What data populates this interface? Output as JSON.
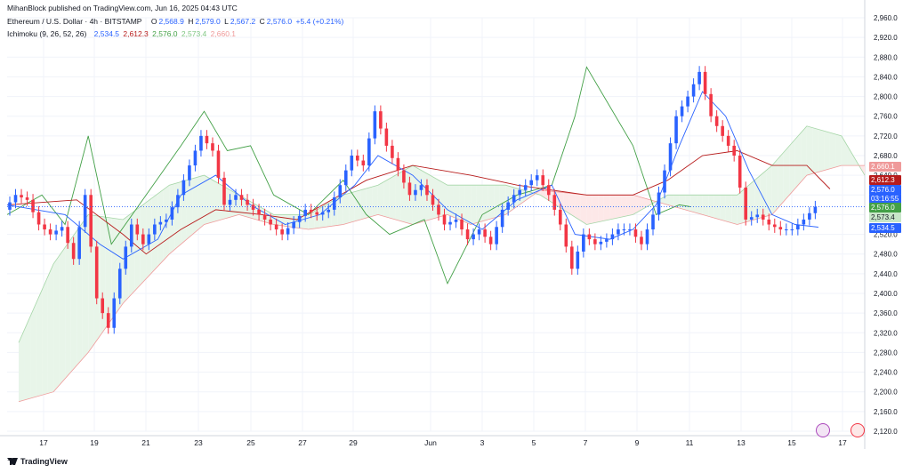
{
  "header": {
    "published": "MihanBlock published on TradingView.com, Jun 16, 2025 04:43 UTC",
    "symbol": "Ethereum / U.S. Dollar · 4h · BITSTAMP",
    "o_label": "O",
    "o_val": "2,568.9",
    "h_label": "H",
    "h_val": "2,579.0",
    "l_label": "L",
    "l_val": "2,567.2",
    "c_label": "C",
    "c_val": "2,576.0",
    "change": "+5.4 (+0.21%)",
    "ichimoku_label": "Ichimoku (9, 26, 52, 26)",
    "ichi_conv": "2,534.5",
    "ichi_base": "2,612.3",
    "ichi_lag": "2,576.0",
    "ichi_spanA": "2,573.4",
    "ichi_spanB": "2,660.1"
  },
  "price_tags": {
    "span_b": "2,660.1",
    "base": "2,612.3",
    "last": "2,576.0",
    "countdown": "03:16:55",
    "lag": "2,576.0",
    "span_a": "2,573.4",
    "conv": "2,534.5"
  },
  "colors": {
    "up": "#2962ff",
    "down": "#f23645",
    "conversion": "#2962ff",
    "base": "#b71c1c",
    "lagging": "#43a047",
    "cloud_bull": "#e8f5e9",
    "cloud_bear": "#fde8e8"
  },
  "footer": {
    "brand": "TradingView"
  },
  "chart_data": {
    "type": "candlestick",
    "ylim": [
      2120,
      2960
    ],
    "y_ticks": [
      "2,960.0",
      "2,920.0",
      "2,880.0",
      "2,840.0",
      "2,800.0",
      "2,760.0",
      "2,720.0",
      "2,680.0",
      "2,640.0",
      "2,600.0",
      "2,560.0",
      "2,520.0",
      "2,480.0",
      "2,440.0",
      "2,400.0",
      "2,360.0",
      "2,320.0",
      "2,280.0",
      "2,240.0",
      "2,200.0",
      "2,160.0",
      "2,120.0"
    ],
    "x_ticks": [
      "17",
      "19",
      "21",
      "23",
      "25",
      "27",
      "29",
      "Jun",
      "3",
      "5",
      "7",
      "9",
      "11",
      "13",
      "15",
      "17"
    ],
    "price_path": [
      [
        0,
        2570
      ],
      [
        2,
        2600
      ],
      [
        4,
        2590
      ],
      [
        6,
        2540
      ],
      [
        8,
        2520
      ],
      [
        10,
        2535
      ],
      [
        12,
        2470
      ],
      [
        14,
        2600
      ],
      [
        16,
        2390
      ],
      [
        18,
        2330
      ],
      [
        20,
        2450
      ],
      [
        22,
        2540
      ],
      [
        24,
        2500
      ],
      [
        26,
        2540
      ],
      [
        28,
        2550
      ],
      [
        30,
        2600
      ],
      [
        32,
        2660
      ],
      [
        34,
        2720
      ],
      [
        36,
        2690
      ],
      [
        38,
        2580
      ],
      [
        40,
        2600
      ],
      [
        42,
        2580
      ],
      [
        44,
        2560
      ],
      [
        46,
        2540
      ],
      [
        48,
        2520
      ],
      [
        50,
        2545
      ],
      [
        52,
        2570
      ],
      [
        54,
        2560
      ],
      [
        56,
        2570
      ],
      [
        58,
        2620
      ],
      [
        60,
        2680
      ],
      [
        62,
        2660
      ],
      [
        64,
        2770
      ],
      [
        66,
        2700
      ],
      [
        68,
        2650
      ],
      [
        70,
        2600
      ],
      [
        72,
        2620
      ],
      [
        74,
        2580
      ],
      [
        76,
        2540
      ],
      [
        78,
        2550
      ],
      [
        80,
        2510
      ],
      [
        82,
        2530
      ],
      [
        84,
        2500
      ],
      [
        86,
        2570
      ],
      [
        88,
        2600
      ],
      [
        90,
        2620
      ],
      [
        92,
        2640
      ],
      [
        94,
        2600
      ],
      [
        96,
        2540
      ],
      [
        98,
        2450
      ],
      [
        100,
        2520
      ],
      [
        102,
        2500
      ],
      [
        104,
        2510
      ],
      [
        106,
        2530
      ],
      [
        108,
        2530
      ],
      [
        110,
        2500
      ],
      [
        112,
        2560
      ],
      [
        114,
        2650
      ],
      [
        116,
        2760
      ],
      [
        118,
        2800
      ],
      [
        120,
        2850
      ],
      [
        122,
        2760
      ],
      [
        124,
        2720
      ],
      [
        126,
        2680
      ],
      [
        128,
        2550
      ],
      [
        130,
        2560
      ],
      [
        132,
        2540
      ],
      [
        134,
        2530
      ],
      [
        136,
        2530
      ],
      [
        138,
        2550
      ],
      [
        140,
        2576
      ]
    ],
    "conversion_line": [
      [
        0,
        2580
      ],
      [
        10,
        2560
      ],
      [
        16,
        2500
      ],
      [
        20,
        2470
      ],
      [
        26,
        2510
      ],
      [
        30,
        2600
      ],
      [
        36,
        2640
      ],
      [
        42,
        2580
      ],
      [
        48,
        2540
      ],
      [
        54,
        2560
      ],
      [
        60,
        2620
      ],
      [
        64,
        2680
      ],
      [
        70,
        2640
      ],
      [
        76,
        2570
      ],
      [
        82,
        2530
      ],
      [
        88,
        2590
      ],
      [
        94,
        2620
      ],
      [
        98,
        2520
      ],
      [
        104,
        2510
      ],
      [
        108,
        2530
      ],
      [
        112,
        2580
      ],
      [
        116,
        2700
      ],
      [
        120,
        2810
      ],
      [
        124,
        2760
      ],
      [
        128,
        2650
      ],
      [
        132,
        2560
      ],
      [
        136,
        2540
      ],
      [
        140,
        2534.5
      ]
    ],
    "base_line": [
      [
        0,
        2580
      ],
      [
        12,
        2590
      ],
      [
        20,
        2520
      ],
      [
        24,
        2480
      ],
      [
        30,
        2530
      ],
      [
        36,
        2570
      ],
      [
        44,
        2560
      ],
      [
        50,
        2550
      ],
      [
        56,
        2590
      ],
      [
        62,
        2630
      ],
      [
        70,
        2660
      ],
      [
        80,
        2640
      ],
      [
        88,
        2620
      ],
      [
        94,
        2610
      ],
      [
        100,
        2600
      ],
      [
        108,
        2600
      ],
      [
        114,
        2630
      ],
      [
        120,
        2680
      ],
      [
        126,
        2690
      ],
      [
        132,
        2660
      ],
      [
        138,
        2660
      ],
      [
        142,
        2612.3
      ]
    ],
    "lagging_line": [
      [
        0,
        2560
      ],
      [
        6,
        2600
      ],
      [
        10,
        2540
      ],
      [
        14,
        2720
      ],
      [
        18,
        2500
      ],
      [
        24,
        2600
      ],
      [
        30,
        2700
      ],
      [
        34,
        2770
      ],
      [
        38,
        2690
      ],
      [
        42,
        2700
      ],
      [
        46,
        2600
      ],
      [
        52,
        2560
      ],
      [
        58,
        2630
      ],
      [
        62,
        2560
      ],
      [
        66,
        2520
      ],
      [
        72,
        2550
      ],
      [
        76,
        2420
      ],
      [
        82,
        2560
      ],
      [
        88,
        2600
      ],
      [
        94,
        2620
      ],
      [
        98,
        2760
      ],
      [
        100,
        2860
      ],
      [
        104,
        2780
      ],
      [
        108,
        2700
      ],
      [
        112,
        2560
      ],
      [
        116,
        2580
      ],
      [
        118,
        2576
      ]
    ],
    "span_a": [
      [
        2,
        2300
      ],
      [
        8,
        2460
      ],
      [
        14,
        2560
      ],
      [
        20,
        2550
      ],
      [
        28,
        2620
      ],
      [
        34,
        2640
      ],
      [
        40,
        2600
      ],
      [
        46,
        2560
      ],
      [
        52,
        2560
      ],
      [
        58,
        2600
      ],
      [
        64,
        2620
      ],
      [
        70,
        2660
      ],
      [
        76,
        2620
      ],
      [
        80,
        2620
      ],
      [
        86,
        2620
      ],
      [
        92,
        2600
      ],
      [
        100,
        2540
      ],
      [
        108,
        2560
      ],
      [
        114,
        2600
      ],
      [
        120,
        2600
      ],
      [
        126,
        2600
      ],
      [
        132,
        2660
      ],
      [
        138,
        2740
      ],
      [
        144,
        2720
      ],
      [
        148,
        2640
      ]
    ],
    "span_b": [
      [
        2,
        2180
      ],
      [
        8,
        2200
      ],
      [
        14,
        2280
      ],
      [
        20,
        2380
      ],
      [
        28,
        2480
      ],
      [
        34,
        2540
      ],
      [
        40,
        2560
      ],
      [
        46,
        2540
      ],
      [
        52,
        2530
      ],
      [
        58,
        2540
      ],
      [
        64,
        2560
      ],
      [
        70,
        2540
      ],
      [
        76,
        2560
      ],
      [
        80,
        2540
      ],
      [
        86,
        2560
      ],
      [
        92,
        2610
      ],
      [
        100,
        2600
      ],
      [
        108,
        2600
      ],
      [
        114,
        2580
      ],
      [
        120,
        2560
      ],
      [
        126,
        2540
      ],
      [
        132,
        2560
      ],
      [
        138,
        2640
      ],
      [
        144,
        2660
      ],
      [
        148,
        2660
      ]
    ]
  }
}
